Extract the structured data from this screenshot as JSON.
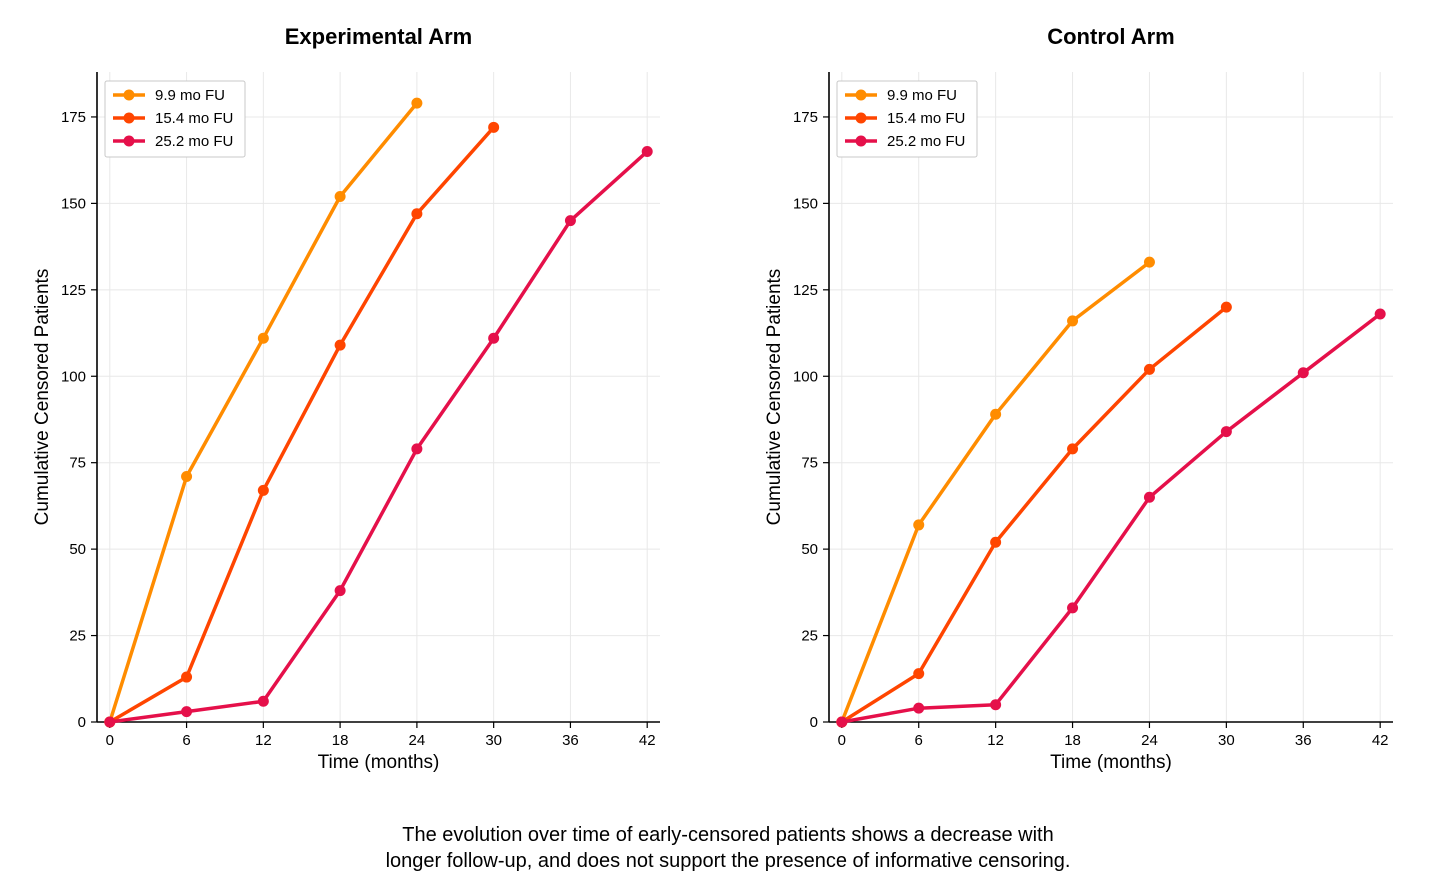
{
  "colors": {
    "series_9_9": "#FF8C00",
    "series_15_4": "#FF4500",
    "series_25_2": "#E5104A",
    "grid": "#e8e8e8",
    "axis": "#000000"
  },
  "chart_data": [
    {
      "type": "line",
      "title": "Experimental Arm",
      "xlabel": "Time (months)",
      "ylabel": "Cumulative Censored Patients",
      "xticks": [
        0,
        6,
        12,
        18,
        24,
        30,
        36,
        42
      ],
      "yticks": [
        0,
        25,
        50,
        75,
        100,
        125,
        150,
        175
      ],
      "xlim": [
        -1,
        43
      ],
      "ylim": [
        0,
        188
      ],
      "grid": true,
      "legend": "top-left",
      "series": [
        {
          "name": "9.9 mo FU",
          "color": "#FF8C00",
          "x": [
            0,
            6,
            12,
            18,
            24
          ],
          "y": [
            0,
            71,
            111,
            152,
            179
          ]
        },
        {
          "name": "15.4 mo FU",
          "color": "#FF4500",
          "x": [
            0,
            6,
            12,
            18,
            24,
            30
          ],
          "y": [
            0,
            13,
            67,
            109,
            147,
            172
          ]
        },
        {
          "name": "25.2 mo FU",
          "color": "#E5104A",
          "x": [
            0,
            6,
            12,
            18,
            24,
            30,
            36,
            42
          ],
          "y": [
            0,
            3,
            6,
            38,
            79,
            111,
            145,
            165
          ]
        }
      ]
    },
    {
      "type": "line",
      "title": "Control Arm",
      "xlabel": "Time (months)",
      "ylabel": "Cumulative Censored Patients",
      "xticks": [
        0,
        6,
        12,
        18,
        24,
        30,
        36,
        42
      ],
      "yticks": [
        0,
        25,
        50,
        75,
        100,
        125,
        150,
        175
      ],
      "xlim": [
        -1,
        43
      ],
      "ylim": [
        0,
        188
      ],
      "grid": true,
      "legend": "top-left",
      "series": [
        {
          "name": "9.9 mo FU",
          "color": "#FF8C00",
          "x": [
            0,
            6,
            12,
            18,
            24
          ],
          "y": [
            0,
            57,
            89,
            116,
            133
          ]
        },
        {
          "name": "15.4 mo FU",
          "color": "#FF4500",
          "x": [
            0,
            6,
            12,
            18,
            24,
            30
          ],
          "y": [
            0,
            14,
            52,
            79,
            102,
            120
          ]
        },
        {
          "name": "25.2 mo FU",
          "color": "#E5104A",
          "x": [
            0,
            6,
            12,
            18,
            24,
            30,
            36,
            42
          ],
          "y": [
            0,
            4,
            5,
            33,
            65,
            84,
            101,
            118
          ]
        }
      ]
    }
  ],
  "caption": {
    "line1": "The evolution over time of early-censored patients shows a decrease with",
    "line2": "longer follow-up, and does not support the presence of informative censoring."
  }
}
